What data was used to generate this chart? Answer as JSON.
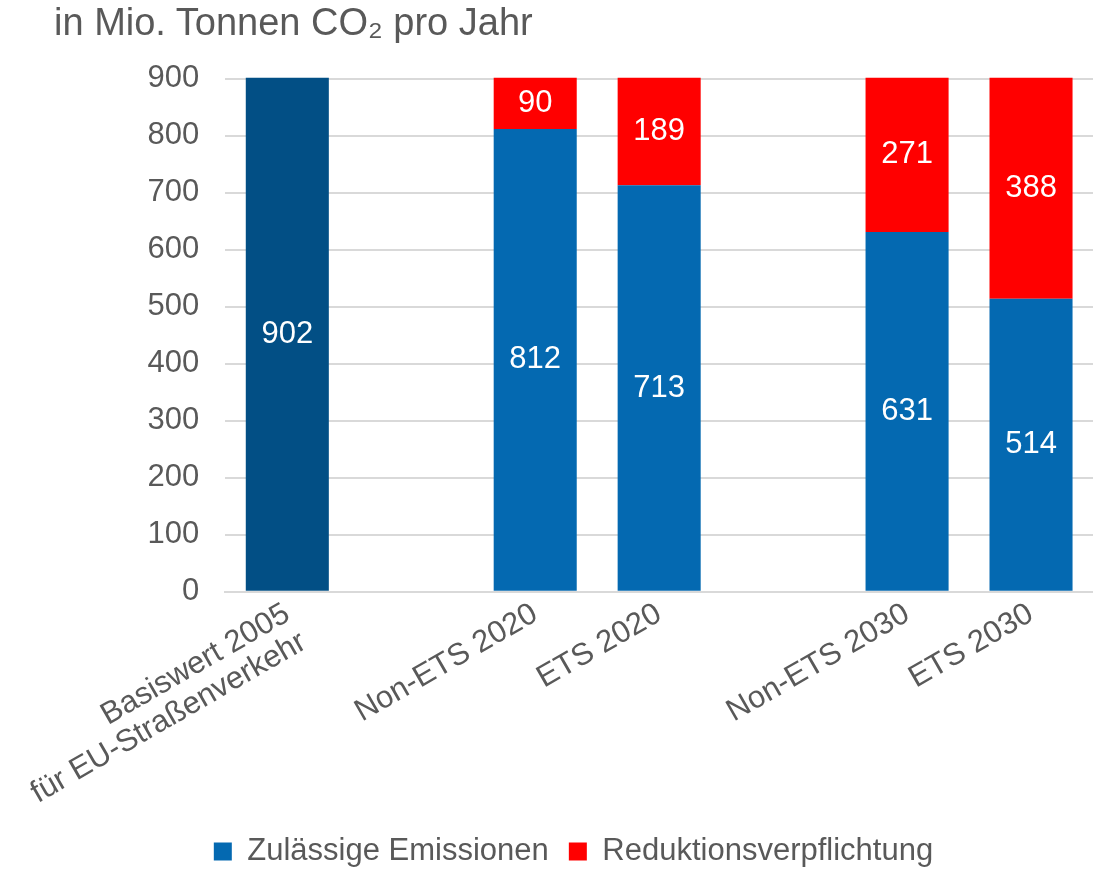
{
  "chart_data": {
    "type": "bar",
    "title": "in Mio. Tonnen CO₂ pro Jahr",
    "categories": [
      "Basiswert 2005\nfür EU-Straßenverkehr",
      null,
      "Non-ETS 2020",
      "ETS 2020",
      null,
      "Non-ETS 2030",
      "ETS 2030"
    ],
    "series": [
      {
        "name": "Zulässige Emissionen",
        "color": "#0469b1",
        "colors": [
          "#024f85",
          "#0469b1",
          "#0469b1",
          "#0469b1",
          "#0469b1",
          "#0469b1",
          "#0469b1"
        ],
        "values": [
          902,
          null,
          812,
          713,
          null,
          631,
          514
        ]
      },
      {
        "name": "Reduktionsverpflichtung",
        "color": "#ff0000",
        "values": [
          null,
          null,
          90,
          189,
          null,
          271,
          388
        ]
      }
    ],
    "stacked": true,
    "ylim": [
      0,
      902
    ],
    "yticks": [
      0,
      100,
      200,
      300,
      400,
      500,
      600,
      700,
      800,
      900
    ],
    "grid": "y",
    "legend": "bottom",
    "data_labels": true
  }
}
